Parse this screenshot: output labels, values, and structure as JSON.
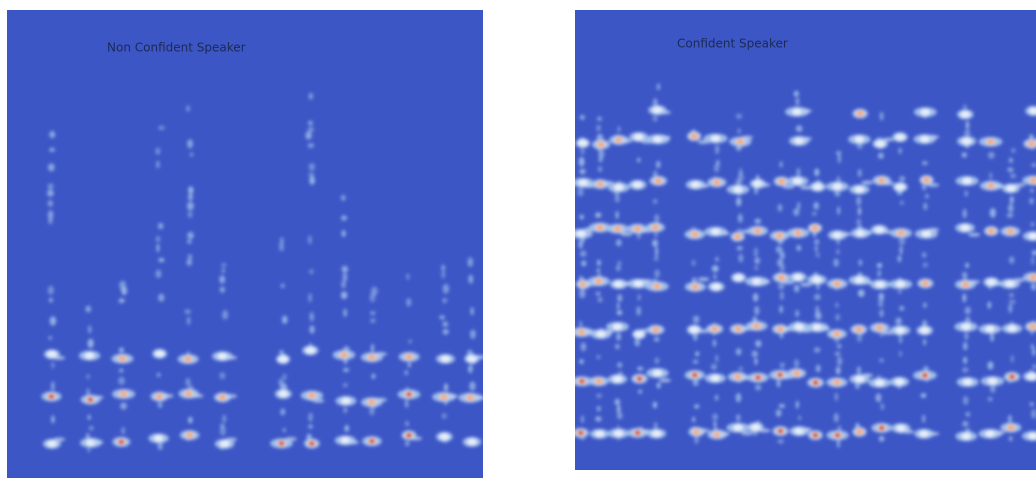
{
  "panels": [
    {
      "title": "Non Confident Speaker"
    },
    {
      "title": "Confident Speaker"
    }
  ]
}
